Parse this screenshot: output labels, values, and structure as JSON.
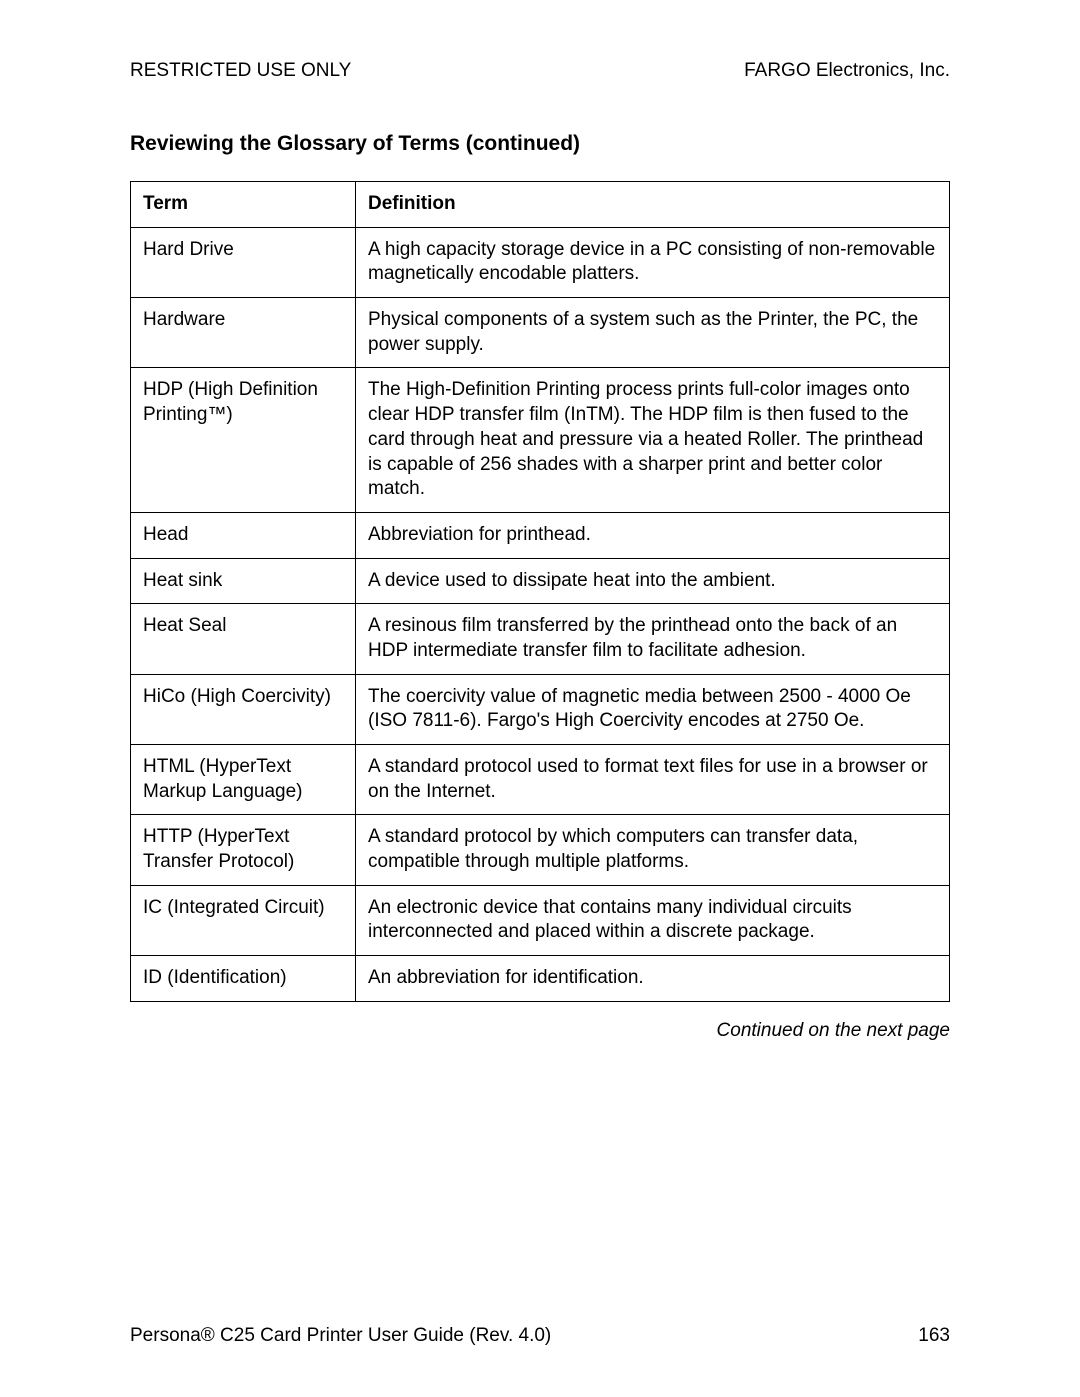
{
  "header": {
    "left": "RESTRICTED USE ONLY",
    "right": "FARGO Electronics, Inc."
  },
  "section_title": "Reviewing the Glossary of Terms (continued)",
  "table": {
    "columns": [
      "Term",
      "Definition"
    ],
    "rows": [
      {
        "term": "Hard Drive",
        "definition": "A high capacity storage device in a PC consisting of non-removable magnetically encodable platters."
      },
      {
        "term": "Hardware",
        "definition": "Physical components of a system such as the Printer, the PC, the power supply."
      },
      {
        "term": "HDP (High Definition Printing™)",
        "definition": "The High-Definition Printing process prints full-color images onto clear HDP transfer film (InTM). The HDP film is then fused to the card through heat and pressure via a heated Roller.  The printhead is capable of 256 shades with a sharper print and better color match."
      },
      {
        "term": "Head",
        "definition": "Abbreviation for printhead."
      },
      {
        "term": "Heat sink",
        "definition": "A device used to dissipate heat into the ambient."
      },
      {
        "term": "Heat Seal",
        "definition": "A resinous film transferred by the printhead onto the back of an HDP intermediate transfer film to facilitate adhesion."
      },
      {
        "term": "HiCo (High Coercivity)",
        "definition": "The coercivity value of magnetic media between 2500 - 4000 Oe (ISO 7811-6).  Fargo's High Coercivity encodes at 2750 Oe."
      },
      {
        "term": "HTML (HyperText Markup Language)",
        "definition": "A standard protocol used to format text files for use in a browser or on the Internet."
      },
      {
        "term": "HTTP (HyperText Transfer Protocol)",
        "definition": "A standard protocol by which computers can transfer data, compatible through multiple platforms."
      },
      {
        "term": "IC (Integrated Circuit)",
        "definition": "An electronic device that contains many individual circuits interconnected and placed within a discrete package."
      },
      {
        "term": "ID (Identification)",
        "definition": "An abbreviation for identification."
      }
    ]
  },
  "continued_text": "Continued on the next page",
  "footer": {
    "left": "Persona® C25 Card Printer User Guide (Rev. 4.0)",
    "page": "163"
  }
}
